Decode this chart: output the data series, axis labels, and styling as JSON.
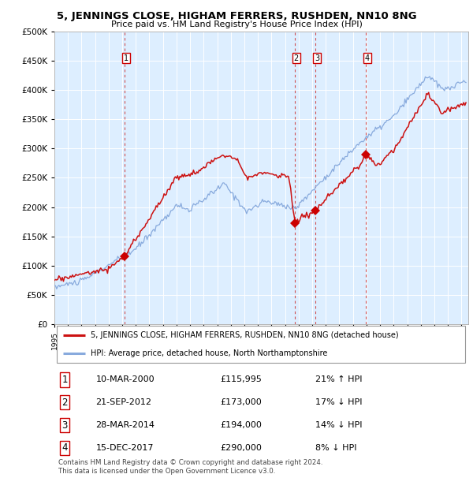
{
  "title": "5, JENNINGS CLOSE, HIGHAM FERRERS, RUSHDEN, NN10 8NG",
  "subtitle": "Price paid vs. HM Land Registry's House Price Index (HPI)",
  "plot_bg_color": "#ddeeff",
  "ylim": [
    0,
    500000
  ],
  "yticks": [
    0,
    50000,
    100000,
    150000,
    200000,
    250000,
    300000,
    350000,
    400000,
    450000,
    500000
  ],
  "xlim_start": 1995.0,
  "xlim_end": 2025.5,
  "hpi_color": "#88aadd",
  "price_color": "#cc1111",
  "sale_marker_color": "#cc0000",
  "vline_color": "#cc3333",
  "sales": [
    {
      "date_num": 2000.19,
      "price": 115995,
      "label": "1"
    },
    {
      "date_num": 2012.72,
      "price": 173000,
      "label": "2"
    },
    {
      "date_num": 2014.24,
      "price": 194000,
      "label": "3"
    },
    {
      "date_num": 2017.96,
      "price": 290000,
      "label": "4"
    }
  ],
  "table_rows": [
    {
      "num": "1",
      "date": "10-MAR-2000",
      "price": "£115,995",
      "hpi": "21% ↑ HPI"
    },
    {
      "num": "2",
      "date": "21-SEP-2012",
      "price": "£173,000",
      "hpi": "17% ↓ HPI"
    },
    {
      "num": "3",
      "date": "28-MAR-2014",
      "price": "£194,000",
      "hpi": "14% ↓ HPI"
    },
    {
      "num": "4",
      "date": "15-DEC-2017",
      "price": "£290,000",
      "hpi": "8% ↓ HPI"
    }
  ],
  "legend_house_label": "5, JENNINGS CLOSE, HIGHAM FERRERS, RUSHDEN, NN10 8NG (detached house)",
  "legend_hpi_label": "HPI: Average price, detached house, North Northamptonshire",
  "footer": "Contains HM Land Registry data © Crown copyright and database right 2024.\nThis data is licensed under the Open Government Licence v3.0."
}
